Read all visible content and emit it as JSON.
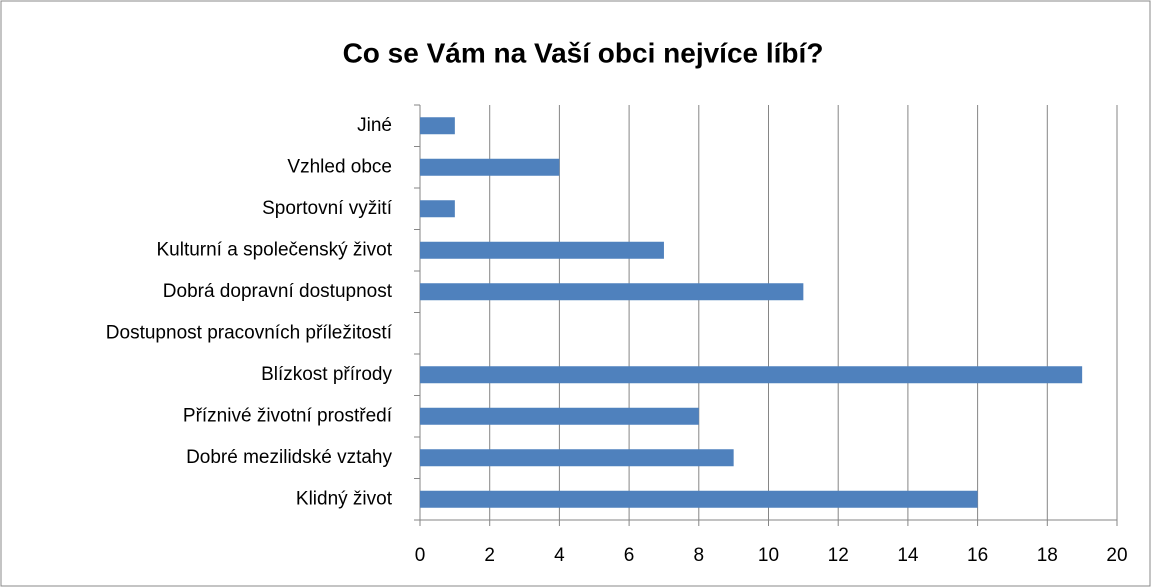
{
  "chart_data": {
    "type": "bar",
    "orientation": "horizontal",
    "title": "Co se Vám na Vaší obci nejvíce líbí?",
    "categories": [
      "Klidný život",
      "Dobré mezilidské vztahy",
      "Příznivé životní prostředí",
      "Blízkost přírody",
      "Dostupnost pracovních příležitostí",
      "Dobrá dopravní dostupnost",
      "Kulturní a společenský život",
      "Sportovní vyžití",
      "Vzhled obce",
      "Jiné"
    ],
    "values": [
      16,
      9,
      8,
      19,
      0,
      11,
      7,
      1,
      4,
      1
    ],
    "color": "#4f81bd",
    "xlim": [
      0,
      20
    ],
    "xticks": [
      0,
      2,
      4,
      6,
      8,
      10,
      12,
      14,
      16,
      18,
      20
    ],
    "grid": true
  }
}
